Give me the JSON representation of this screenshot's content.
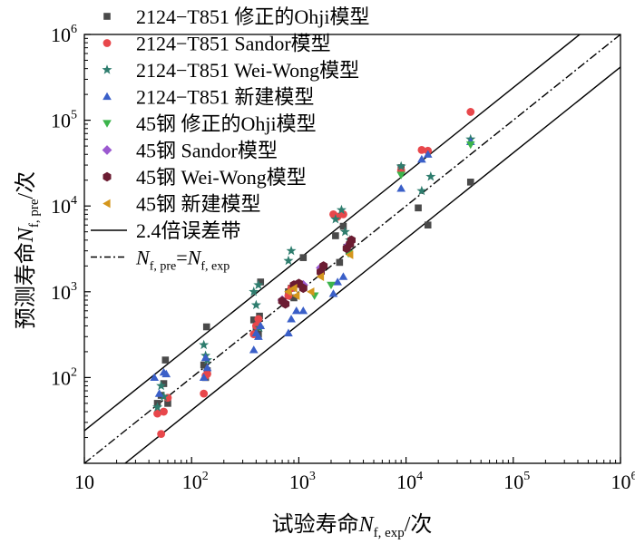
{
  "chart_data": {
    "type": "scatter",
    "xlabel_main": "试验寿命",
    "xlabel_sym": "N",
    "xlabel_sub": "f, exp",
    "xlabel_unit": "/次",
    "ylabel_main": "预测寿命",
    "ylabel_sym": "N",
    "ylabel_sub": "f, pre",
    "ylabel_unit": "/次",
    "log_x": true,
    "log_y": true,
    "xlim": [
      10,
      1000000
    ],
    "ylim": [
      10,
      1000000
    ],
    "x_ticks": [
      {
        "value": 10,
        "base": "10",
        "exp": ""
      },
      {
        "value": 100,
        "base": "10",
        "exp": "2"
      },
      {
        "value": 1000,
        "base": "10",
        "exp": "3"
      },
      {
        "value": 10000,
        "base": "10",
        "exp": "4"
      },
      {
        "value": 100000,
        "base": "10",
        "exp": "5"
      },
      {
        "value": 1000000,
        "base": "10",
        "exp": "6"
      }
    ],
    "y_ticks": [
      {
        "value": 100,
        "base": "10",
        "exp": "2"
      },
      {
        "value": 1000,
        "base": "10",
        "exp": "3"
      },
      {
        "value": 10000,
        "base": "10",
        "exp": "4"
      },
      {
        "value": 100000,
        "base": "10",
        "exp": "5"
      },
      {
        "value": 1000000,
        "base": "10",
        "exp": "6"
      }
    ],
    "legend_position": "top-left",
    "band_legend": "2.4倍误差带",
    "band_factor": 2.4,
    "equality_legend": {
      "lhs_sym": "N",
      "lhs_sub": "f, pre",
      "eq": "=",
      "rhs_sym": "N",
      "rhs_sub": "f, exp"
    },
    "series": [
      {
        "name": "2124−T851 修正的Ohji模型",
        "marker": "square",
        "color": "#4a4a4a",
        "points": [
          [
            48,
            50
          ],
          [
            52,
            62
          ],
          [
            55,
            85
          ],
          [
            57,
            160
          ],
          [
            60,
            50
          ],
          [
            130,
            140
          ],
          [
            135,
            100
          ],
          [
            138,
            390
          ],
          [
            140,
            120
          ],
          [
            380,
            470
          ],
          [
            400,
            340
          ],
          [
            420,
            320
          ],
          [
            430,
            520
          ],
          [
            440,
            1300
          ],
          [
            800,
            1000
          ],
          [
            850,
            1100
          ],
          [
            900,
            850
          ],
          [
            1100,
            2500
          ],
          [
            2200,
            4500
          ],
          [
            2400,
            2200
          ],
          [
            2600,
            5800
          ],
          [
            2800,
            3300
          ],
          [
            3000,
            3600
          ],
          [
            9000,
            28000
          ],
          [
            13000,
            9500
          ],
          [
            16000,
            6000
          ],
          [
            40000,
            19000
          ]
        ]
      },
      {
        "name": "2124−T851 Sandor模型",
        "marker": "circle",
        "color": "#e8474b",
        "points": [
          [
            48,
            38
          ],
          [
            52,
            22
          ],
          [
            55,
            40
          ],
          [
            60,
            58
          ],
          [
            130,
            65
          ],
          [
            135,
            105
          ],
          [
            140,
            110
          ],
          [
            380,
            320
          ],
          [
            400,
            400
          ],
          [
            420,
            480
          ],
          [
            800,
            900
          ],
          [
            850,
            1100
          ],
          [
            900,
            1200
          ],
          [
            2100,
            8000
          ],
          [
            2300,
            7500
          ],
          [
            2600,
            8000
          ],
          [
            9000,
            26000
          ],
          [
            14000,
            45000
          ],
          [
            16000,
            44000
          ],
          [
            40000,
            125000
          ]
        ]
      },
      {
        "name": "2124−T851 Wei-Wong模型",
        "marker": "star",
        "color": "#2e7d6e",
        "points": [
          [
            48,
            45
          ],
          [
            52,
            80
          ],
          [
            55,
            60
          ],
          [
            130,
            240
          ],
          [
            135,
            180
          ],
          [
            140,
            160
          ],
          [
            380,
            1000
          ],
          [
            400,
            700
          ],
          [
            420,
            1200
          ],
          [
            430,
            380
          ],
          [
            800,
            2300
          ],
          [
            850,
            3000
          ],
          [
            2200,
            7000
          ],
          [
            2500,
            9000
          ],
          [
            2700,
            5000
          ],
          [
            3000,
            4000
          ],
          [
            9000,
            29000
          ],
          [
            14000,
            15000
          ],
          [
            17000,
            22000
          ],
          [
            40000,
            60000
          ]
        ]
      },
      {
        "name": "2124−T851 新建模型",
        "marker": "triangle-up",
        "color": "#3a5fc8",
        "points": [
          [
            45,
            100
          ],
          [
            50,
            65
          ],
          [
            55,
            115
          ],
          [
            58,
            110
          ],
          [
            130,
            100
          ],
          [
            135,
            170
          ],
          [
            140,
            130
          ],
          [
            380,
            210
          ],
          [
            400,
            330
          ],
          [
            420,
            300
          ],
          [
            440,
            400
          ],
          [
            800,
            330
          ],
          [
            850,
            480
          ],
          [
            950,
            600
          ],
          [
            1100,
            600
          ],
          [
            2100,
            950
          ],
          [
            2300,
            1300
          ],
          [
            2600,
            1500
          ],
          [
            9000,
            16000
          ],
          [
            14000,
            35000
          ],
          [
            16000,
            40000
          ],
          [
            40000,
            56000
          ]
        ]
      },
      {
        "name": "45钢 修正的Ohji模型",
        "marker": "triangle-down",
        "color": "#3cb44b",
        "points": [
          [
            2000,
            1200
          ],
          [
            2900,
            2800
          ],
          [
            3100,
            3900
          ],
          [
            1400,
            900
          ],
          [
            9000,
            23000
          ],
          [
            40000,
            52000
          ]
        ]
      },
      {
        "name": "45钢 Sandor模型",
        "marker": "diamond",
        "color": "#9b59d0",
        "points": [
          [
            700,
            800
          ],
          [
            1600,
            1900
          ],
          [
            2900,
            3500
          ],
          [
            1100,
            1200
          ]
        ]
      },
      {
        "name": "45钢 Wei-Wong模型",
        "marker": "hexagon",
        "color": "#6b1c32",
        "points": [
          [
            700,
            780
          ],
          [
            750,
            720
          ],
          [
            900,
            1200
          ],
          [
            1000,
            1250
          ],
          [
            1100,
            1100
          ],
          [
            1600,
            1700
          ],
          [
            1700,
            2000
          ],
          [
            2800,
            3200
          ],
          [
            3000,
            3600
          ],
          [
            3100,
            4000
          ]
        ]
      },
      {
        "name": "45钢 新建模型",
        "marker": "triangle-left",
        "color": "#d4961c",
        "points": [
          [
            800,
            1000
          ],
          [
            900,
            1100
          ],
          [
            1300,
            1000
          ],
          [
            1600,
            1500
          ],
          [
            3000,
            2700
          ],
          [
            950,
            900
          ]
        ]
      }
    ]
  }
}
